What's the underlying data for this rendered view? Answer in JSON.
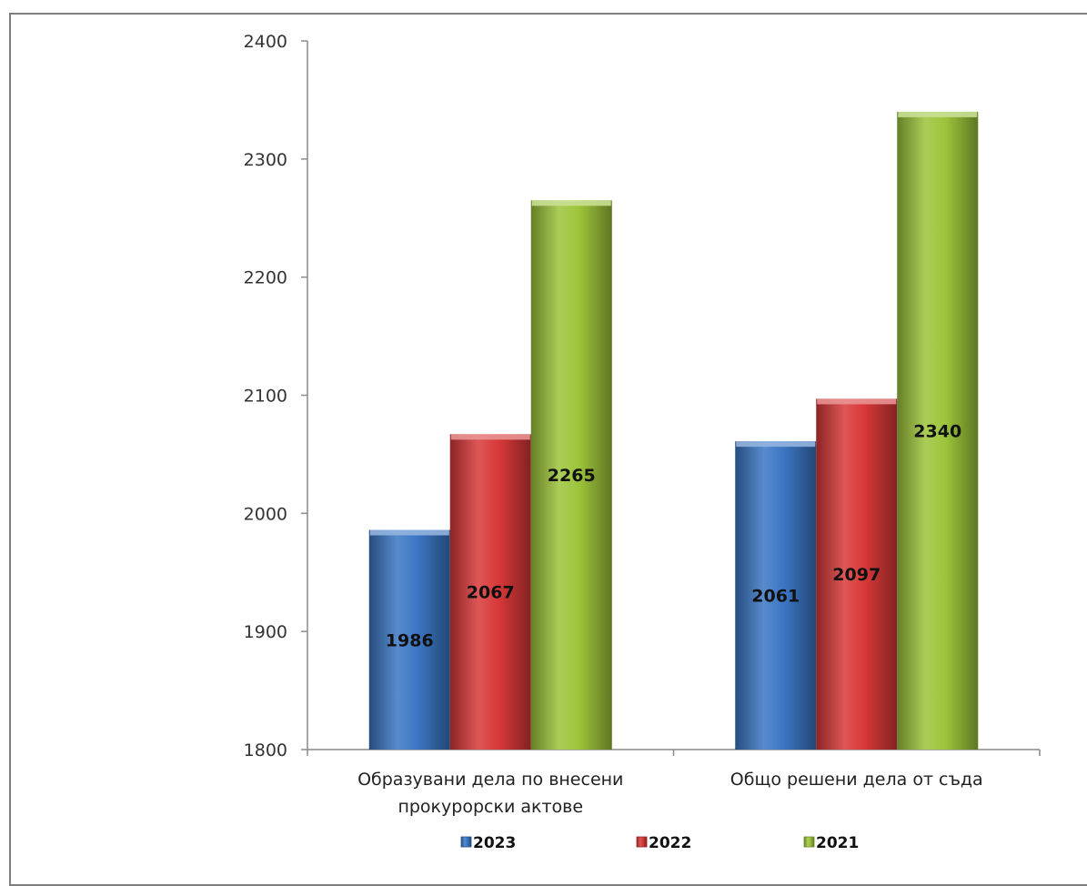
{
  "chart_data": {
    "type": "bar",
    "categories": [
      "Образувани дела по внесени прокурорски актове",
      "Общо решени дела от съда"
    ],
    "category_lines": [
      [
        "Образувани дела по внесени",
        "прокурорски актове"
      ],
      [
        "Общо решени дела от съда"
      ]
    ],
    "series": [
      {
        "name": "2023",
        "values": [
          1986,
          2061
        ],
        "color": "#3b76c4"
      },
      {
        "name": "2022",
        "values": [
          2067,
          2097
        ],
        "color": "#d83838"
      },
      {
        "name": "2021",
        "values": [
          2265,
          2340
        ],
        "color": "#9cc43a"
      }
    ],
    "ylim": [
      1800,
      2400
    ],
    "yticks": [
      1800,
      1900,
      2000,
      2100,
      2200,
      2300,
      2400
    ],
    "title": "",
    "xlabel": "",
    "ylabel": "",
    "grid": false,
    "legend_position": "bottom",
    "data_labels": true
  }
}
